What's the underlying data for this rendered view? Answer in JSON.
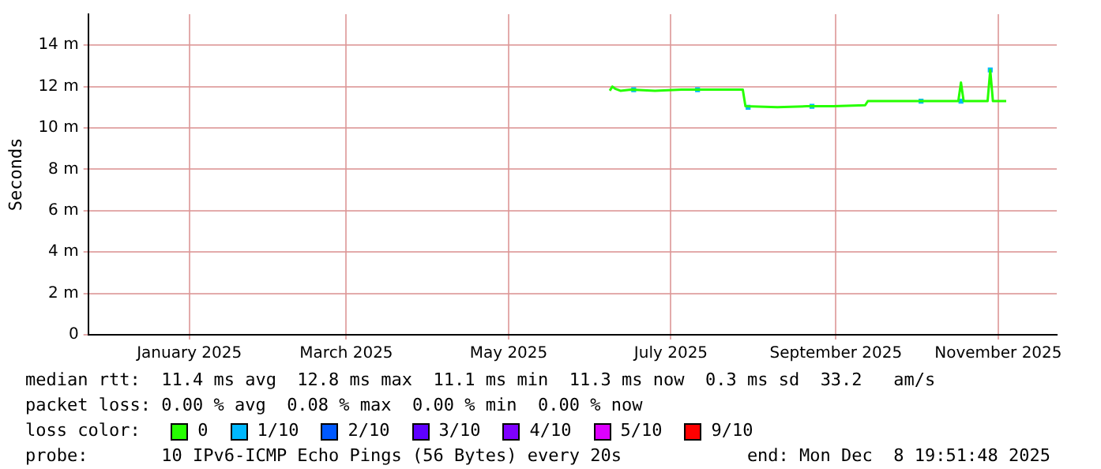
{
  "chart_data": {
    "type": "line",
    "ylabel": "Seconds",
    "legend_title": "loss color:",
    "legend": "bottom",
    "grid": true,
    "xlim": [
      "2024-12-09",
      "2025-12-08"
    ],
    "xticks": [
      {
        "value": "2025-01-16",
        "label": "January 2025"
      },
      {
        "value": "2025-03-16",
        "label": "March 2025"
      },
      {
        "value": "2025-05-16",
        "label": "May 2025"
      },
      {
        "value": "2025-07-16",
        "label": "July 2025"
      },
      {
        "value": "2025-09-16",
        "label": "September 2025"
      },
      {
        "value": "2025-11-16",
        "label": "November 2025"
      }
    ],
    "ylim": [
      0,
      15.5
    ],
    "yticks": [
      0,
      {
        "value": 2,
        "label": "2 m"
      },
      {
        "value": 4,
        "label": "4 m"
      },
      {
        "value": 6,
        "label": "6 m"
      },
      {
        "value": 8,
        "label": "8 m"
      },
      {
        "value": 10,
        "label": "10 m"
      },
      {
        "value": 12,
        "label": "12 m"
      },
      {
        "value": 14,
        "label": "14 m"
      }
    ],
    "series": [
      {
        "name": "0",
        "color": "#26ff00",
        "x": [
          "2025-06-23",
          "2025-06-24",
          "2025-06-25",
          "2025-06-27",
          "2025-07-01",
          "2025-07-10",
          "2025-07-20",
          "2025-08-01",
          "2025-08-12",
          "2025-08-13",
          "2025-08-25",
          "2025-09-05",
          "2025-09-15",
          "2025-09-27",
          "2025-09-28",
          "2025-10-10",
          "2025-10-20",
          "2025-11-01",
          "2025-11-02",
          "2025-11-03",
          "2025-11-12",
          "2025-11-13",
          "2025-11-14",
          "2025-11-19"
        ],
        "values": [
          11.8,
          12.0,
          11.9,
          11.8,
          11.85,
          11.8,
          11.85,
          11.85,
          11.85,
          11.05,
          11.0,
          11.05,
          11.05,
          11.1,
          11.3,
          11.3,
          11.3,
          11.3,
          12.2,
          11.3,
          11.3,
          12.8,
          11.3,
          11.3
        ]
      },
      {
        "name": "1/10",
        "color": "#00b8ff",
        "type": "scatter",
        "x": [
          "2025-07-02",
          "2025-07-26",
          "2025-08-14",
          "2025-09-07",
          "2025-10-18",
          "2025-11-02",
          "2025-11-13"
        ],
        "values": [
          11.85,
          11.85,
          11.0,
          11.05,
          11.3,
          11.3,
          12.8
        ]
      },
      {
        "name": "2/10",
        "color": "#0059ff",
        "type": "scatter"
      },
      {
        "name": "3/10",
        "color": "#5e00ff",
        "type": "scatter"
      },
      {
        "name": "4/10",
        "color": "#7e00ff",
        "type": "scatter"
      },
      {
        "name": "5/10",
        "color": "#dd00ff",
        "type": "scatter"
      },
      {
        "name": "9/10",
        "color": "#ff0000",
        "type": "scatter"
      }
    ],
    "annotations": [
      "median rtt:  11.4 ms avg  12.8 ms max  11.1 ms min  11.3 ms now  0.3 ms sd  33.2   am/s",
      "packet loss: 0.00 % avg  0.08 % max  0.00 % min  0.00 % now",
      "probe:       10 IPv6-ICMP Echo Pings (56 Bytes) every 20s",
      "end: Mon Dec  8 19:51:48 2025"
    ]
  }
}
